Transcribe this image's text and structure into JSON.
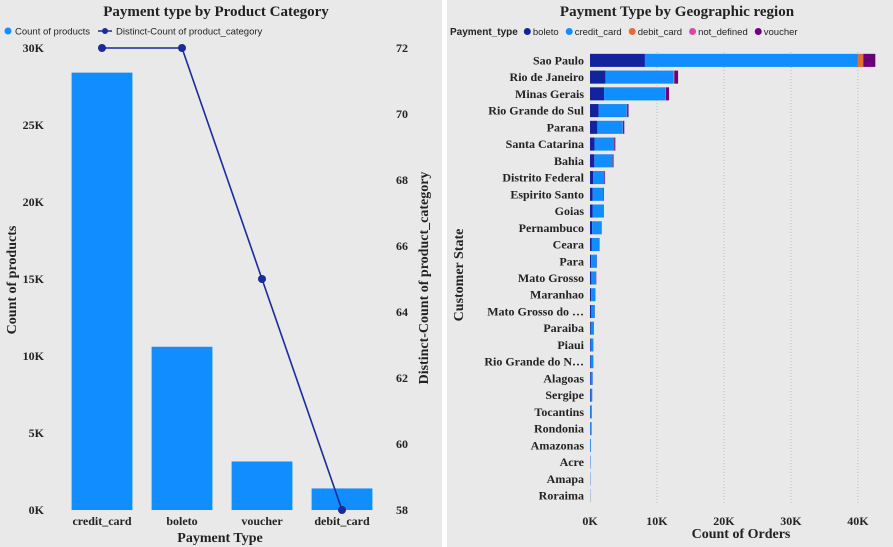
{
  "chart_data": [
    {
      "type": "bar",
      "title": "Payment type by Product Category",
      "xlabel": "Payment Type",
      "ylabel": "Count of products",
      "y2label": "Distinct-Count of product_category",
      "categories": [
        "credit_card",
        "boleto",
        "voucher",
        "debit_card"
      ],
      "ylim": [
        0,
        30000
      ],
      "yticks": [
        "0K",
        "5K",
        "10K",
        "15K",
        "20K",
        "25K",
        "30K"
      ],
      "y2lim": [
        58,
        72
      ],
      "y2ticks": [
        "58",
        "60",
        "62",
        "64",
        "66",
        "68",
        "70",
        "72"
      ],
      "legend_position": "top-left",
      "series": [
        {
          "name": "Count of products",
          "type": "bar",
          "axis": "left",
          "color": "#118dff",
          "values": [
            28400,
            10600,
            3150,
            1400
          ]
        },
        {
          "name": "Distinct-Count of product_category",
          "type": "line",
          "axis": "right",
          "color": "#1a2b9c",
          "values": [
            72,
            72,
            65,
            58
          ]
        }
      ]
    },
    {
      "type": "bar",
      "orientation": "horizontal",
      "stacked": true,
      "title": "Payment Type by Geographic region",
      "xlabel": "Count of Orders",
      "ylabel": "Customer State",
      "legend_title": "Payment_type",
      "legend_position": "top-left",
      "xlim": [
        0,
        43000
      ],
      "xticks": [
        0,
        10000,
        20000,
        30000,
        40000
      ],
      "xtick_labels": [
        "0K",
        "10K",
        "20K",
        "30K",
        "40K"
      ],
      "grid": true,
      "categories": [
        "Sao Paulo",
        "Rio de Janeiro",
        "Minas Gerais",
        "Rio Grande do Sul",
        "Parana",
        "Santa Catarina",
        "Bahia",
        "Distrito Federal",
        "Espirito Santo",
        "Goias",
        "Pernambuco",
        "Ceara",
        "Para",
        "Mato Grosso",
        "Maranhao",
        "Mato Grosso do …",
        "Paraiba",
        "Piaui",
        "Rio Grande do N…",
        "Alagoas",
        "Sergipe",
        "Tocantins",
        "Rondonia",
        "Amazonas",
        "Acre",
        "Amapa",
        "Roraima"
      ],
      "series": [
        {
          "name": "boleto",
          "color": "#12239e",
          "values": [
            8200,
            2300,
            2100,
            1300,
            1100,
            700,
            650,
            450,
            400,
            380,
            320,
            270,
            180,
            200,
            180,
            150,
            120,
            100,
            100,
            90,
            70,
            60,
            50,
            30,
            20,
            15,
            10
          ]
        },
        {
          "name": "credit_card",
          "color": "#118dff",
          "values": [
            31800,
            10100,
            9100,
            4200,
            3800,
            2900,
            2700,
            1700,
            1600,
            1600,
            1350,
            1100,
            800,
            700,
            600,
            550,
            450,
            380,
            380,
            300,
            260,
            200,
            180,
            110,
            60,
            50,
            35
          ]
        },
        {
          "name": "debit_card",
          "color": "#e66c37",
          "values": [
            800,
            200,
            150,
            50,
            40,
            30,
            30,
            20,
            20,
            20,
            15,
            10,
            10,
            10,
            5,
            5,
            5,
            5,
            5,
            5,
            5,
            5,
            5,
            2,
            2,
            1,
            1
          ]
        },
        {
          "name": "not_defined",
          "color": "#e044a7",
          "values": [
            0,
            0,
            0,
            0,
            0,
            0,
            0,
            0,
            0,
            0,
            0,
            0,
            0,
            0,
            0,
            0,
            0,
            0,
            0,
            0,
            0,
            0,
            0,
            0,
            0,
            0,
            0
          ]
        },
        {
          "name": "voucher",
          "color": "#6b007b",
          "values": [
            1800,
            550,
            450,
            200,
            180,
            150,
            130,
            80,
            70,
            70,
            60,
            50,
            40,
            35,
            30,
            25,
            20,
            20,
            20,
            15,
            10,
            10,
            10,
            5,
            5,
            3,
            2
          ]
        }
      ]
    }
  ]
}
